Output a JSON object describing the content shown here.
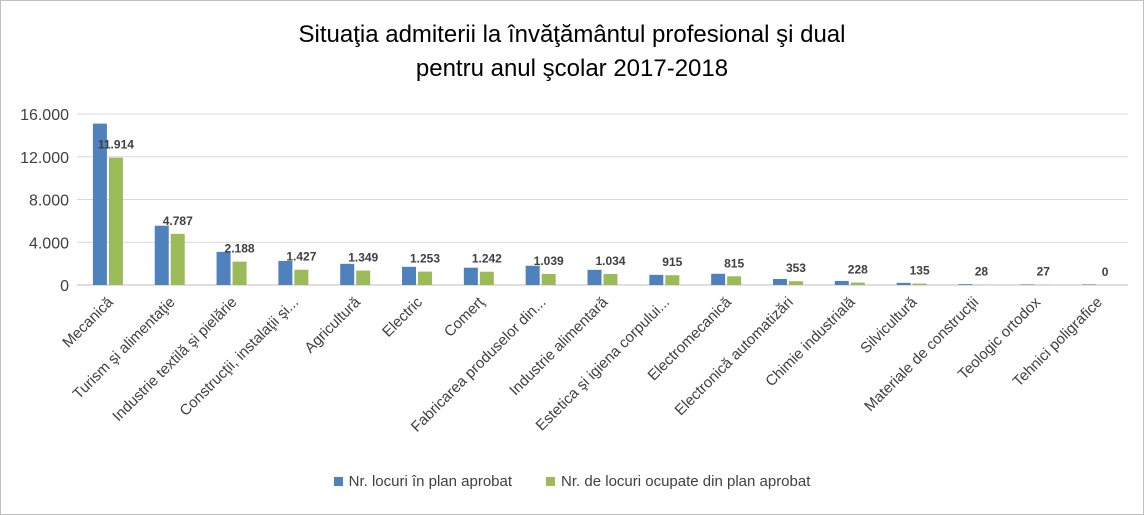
{
  "chart_data": {
    "type": "bar",
    "title_line1": "Situaţia admiterii la învăţământul profesional şi dual",
    "title_line2": "pentru anul şcolar 2017-2018",
    "categories": [
      "Mecanică",
      "Turism şi alimentaţie",
      "Industrie textilă şi pielărie",
      "Construcţii, instalaţii şi...",
      "Agricultură",
      "Electric",
      "Comerţ",
      "Fabricarea produselor din...",
      "Industrie alimentară",
      "Estetica şi igiena corpului...",
      "Electromecanică",
      "Electronică automatizări",
      "Chimie industrială",
      "Silvicultură",
      "Materiale de construcţii",
      "Teologic ortodox",
      "Tehnici poligrafice"
    ],
    "series": [
      {
        "name": "Nr. locuri în plan aprobat",
        "color": "#4f81bd",
        "values": [
          15100,
          5550,
          3100,
          2250,
          1980,
          1700,
          1620,
          1800,
          1420,
          950,
          1050,
          560,
          380,
          200,
          80,
          56,
          56
        ]
      },
      {
        "name": "Nr. de locuri ocupate din plan aprobat",
        "color": "#9bbb59",
        "values": [
          11914,
          4787,
          2188,
          1427,
          1349,
          1253,
          1242,
          1039,
          1034,
          915,
          815,
          353,
          228,
          135,
          28,
          27,
          0
        ]
      }
    ],
    "data_labels": [
      "11.914",
      "4.787",
      "2.188",
      "1.427",
      "1.349",
      "1.253",
      "1.242",
      "1.039",
      "1.034",
      "915",
      "815",
      "353",
      "228",
      "135",
      "28",
      "27",
      "0"
    ],
    "y_ticks": [
      0,
      4000,
      8000,
      12000,
      16000
    ],
    "y_tick_labels": [
      "0",
      "4.000",
      "8.000",
      "12.000",
      "16.000"
    ],
    "ylim": [
      0,
      16000
    ],
    "grid": true,
    "legend_position": "bottom"
  }
}
